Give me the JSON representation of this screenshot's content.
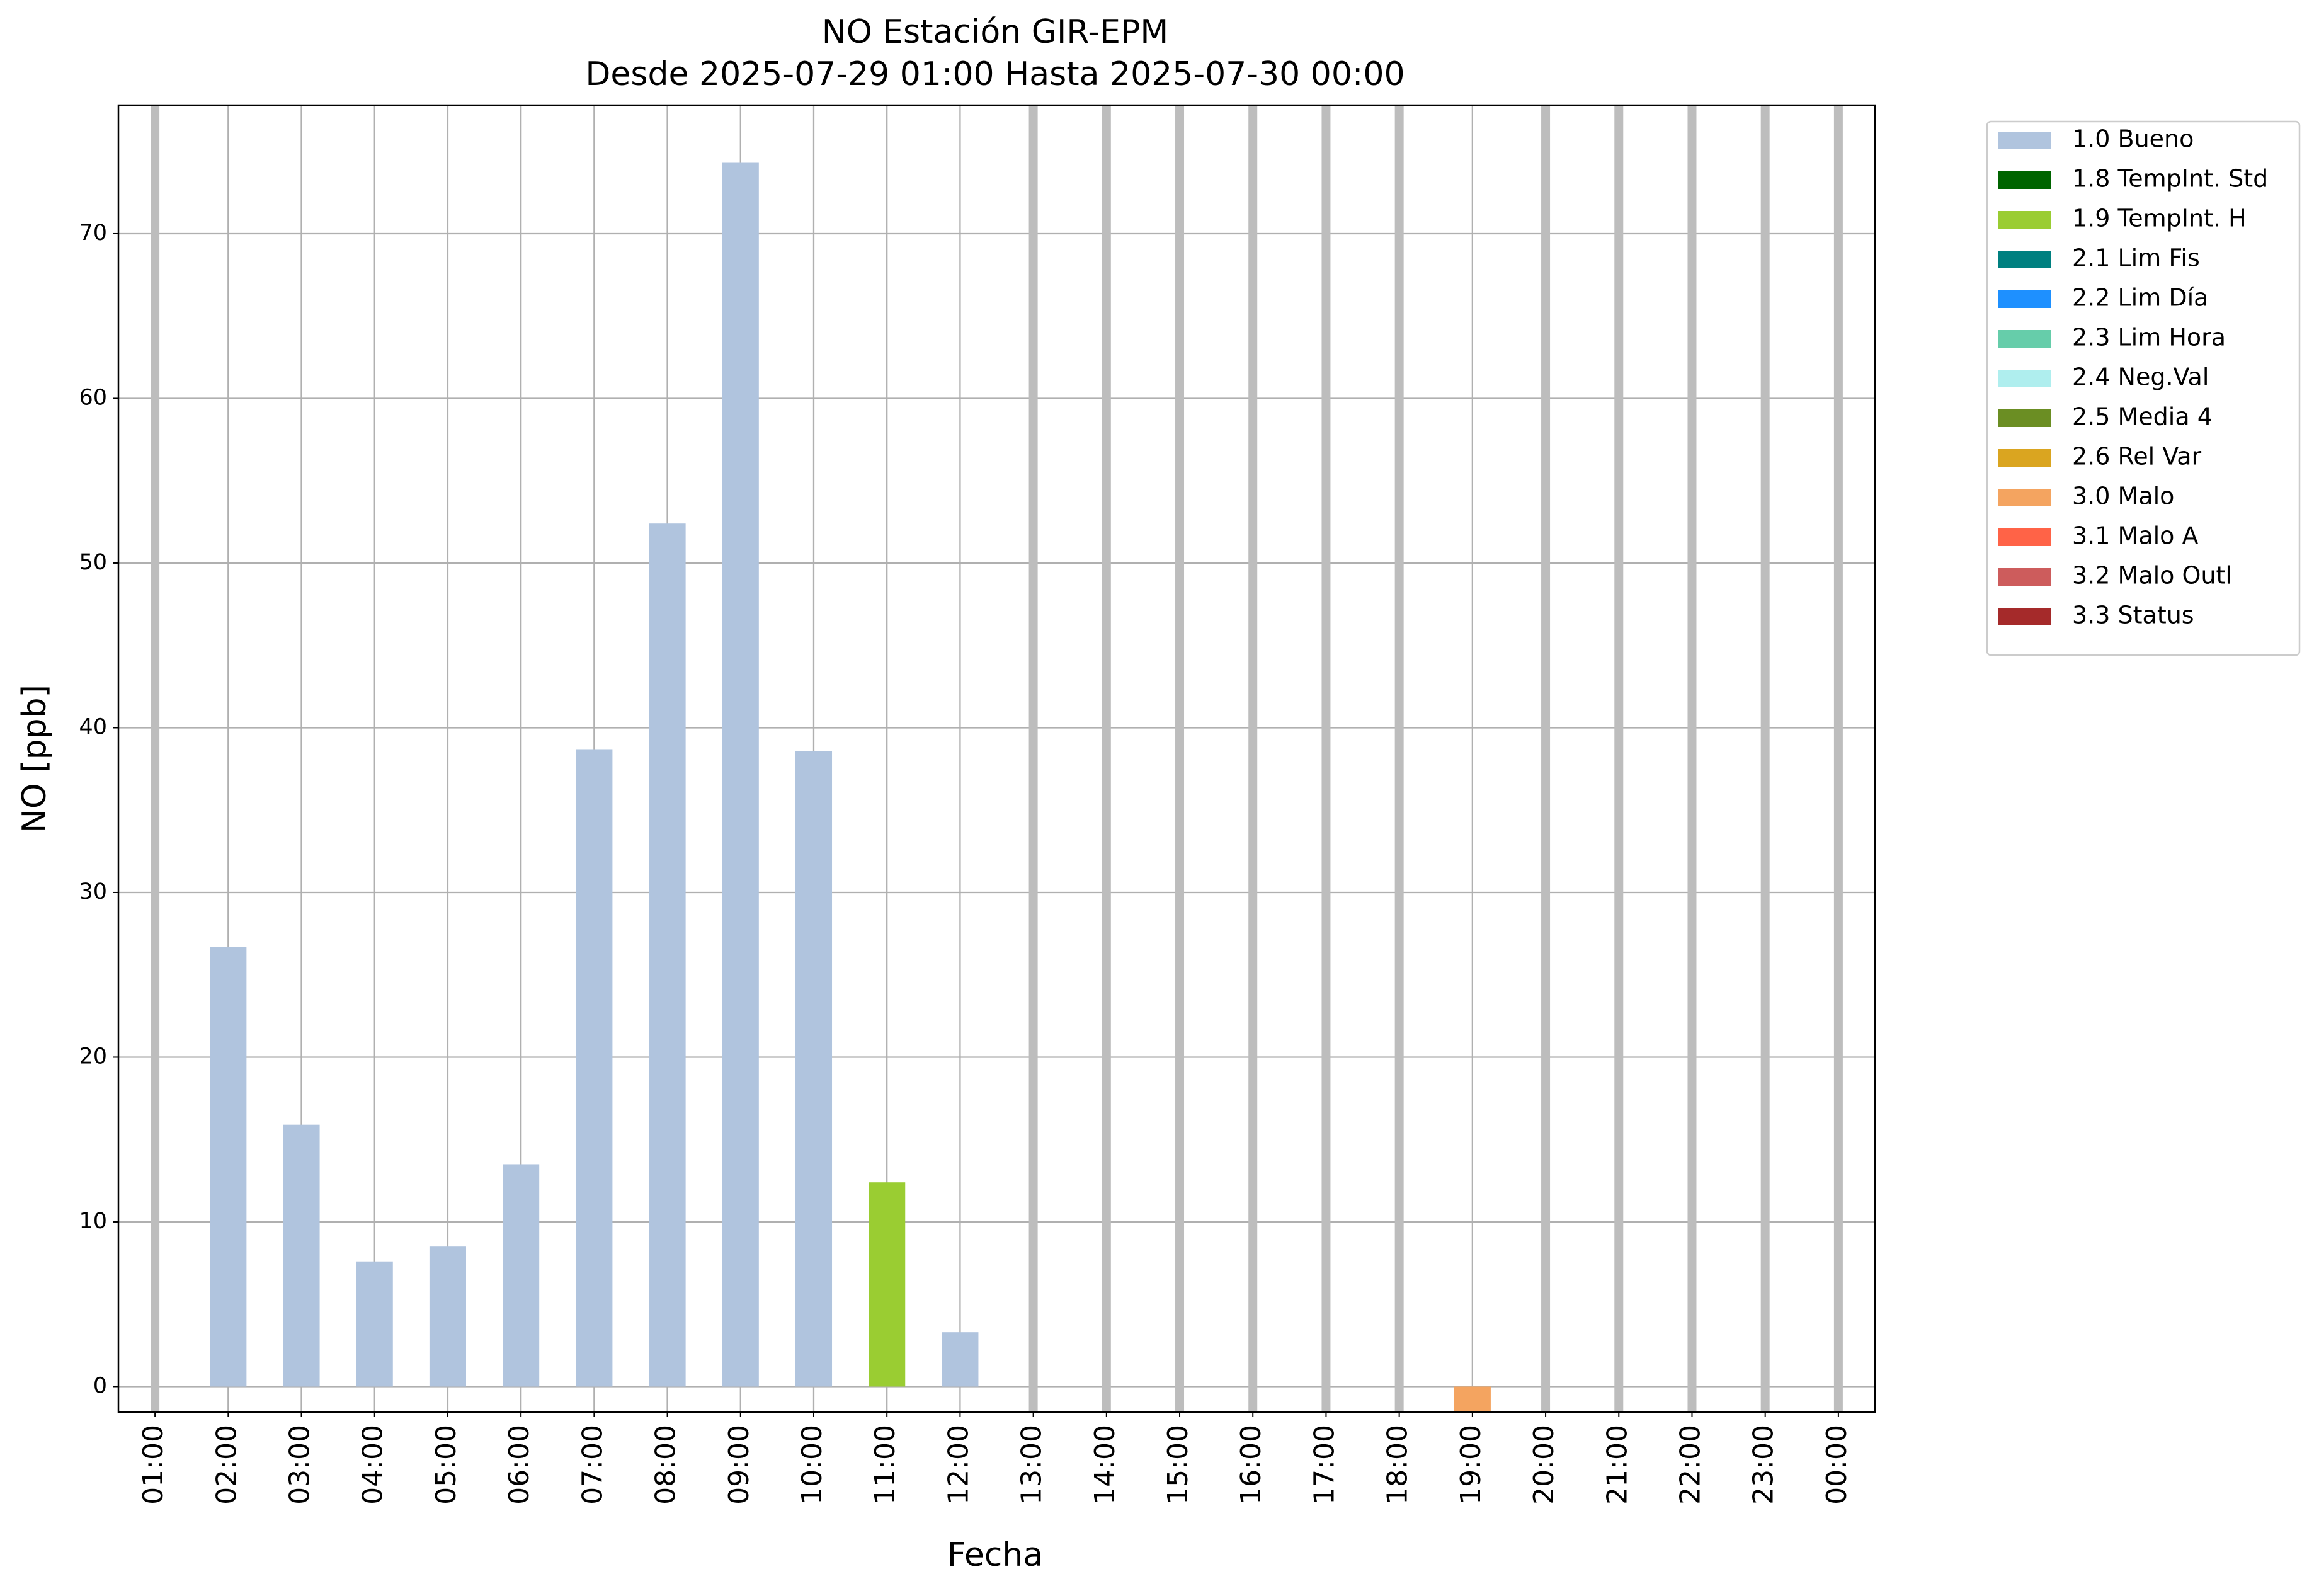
{
  "chart_data": {
    "type": "bar",
    "title": "NO Estación GIR-EPM",
    "subtitle": "Desde 2025-07-29 01:00 Hasta 2025-07-30 00:00",
    "x_label": "Fecha",
    "y_label": "NO [ppb]",
    "categories": [
      "01:00",
      "02:00",
      "03:00",
      "04:00",
      "05:00",
      "06:00",
      "07:00",
      "08:00",
      "09:00",
      "10:00",
      "11:00",
      "12:00",
      "13:00",
      "14:00",
      "15:00",
      "16:00",
      "17:00",
      "18:00",
      "19:00",
      "20:00",
      "21:00",
      "22:00",
      "23:00",
      "00:00"
    ],
    "ylim": [
      -1.55,
      77.8
    ],
    "yticks": [
      0,
      10,
      20,
      30,
      40,
      50,
      60,
      70
    ],
    "grid": true,
    "legend": "outside-right",
    "series": [
      {
        "name": "1.0 Bueno",
        "color": "#b0c4de",
        "values": [
          null,
          26.7,
          15.9,
          7.6,
          8.5,
          13.5,
          38.7,
          52.4,
          74.3,
          38.6,
          null,
          3.3,
          null,
          null,
          null,
          null,
          null,
          null,
          null,
          null,
          null,
          null,
          null,
          null
        ]
      },
      {
        "name": "1.8 TempInt. Std",
        "color": "#006400",
        "values": [
          null,
          null,
          null,
          null,
          null,
          null,
          null,
          null,
          null,
          null,
          null,
          null,
          null,
          null,
          null,
          null,
          null,
          null,
          null,
          null,
          null,
          null,
          null,
          null
        ]
      },
      {
        "name": "1.9 TempInt. H",
        "color": "#9acd32",
        "values": [
          null,
          null,
          null,
          null,
          null,
          null,
          null,
          null,
          null,
          null,
          12.4,
          null,
          null,
          null,
          null,
          null,
          null,
          null,
          null,
          null,
          null,
          null,
          null,
          null
        ]
      },
      {
        "name": "2.1 Lim Fis",
        "color": "#008080",
        "values": [
          null,
          null,
          null,
          null,
          null,
          null,
          null,
          null,
          null,
          null,
          null,
          null,
          null,
          null,
          null,
          null,
          null,
          null,
          null,
          null,
          null,
          null,
          null,
          null
        ]
      },
      {
        "name": "2.2 Lim Día",
        "color": "#1e90ff",
        "values": [
          null,
          null,
          null,
          null,
          null,
          null,
          null,
          null,
          null,
          null,
          null,
          null,
          null,
          null,
          null,
          null,
          null,
          null,
          null,
          null,
          null,
          null,
          null,
          null
        ]
      },
      {
        "name": "2.3 Lim Hora",
        "color": "#66cdaa",
        "values": [
          null,
          null,
          null,
          null,
          null,
          null,
          null,
          null,
          null,
          null,
          null,
          null,
          null,
          null,
          null,
          null,
          null,
          null,
          null,
          null,
          null,
          null,
          null,
          null
        ]
      },
      {
        "name": "2.4 Neg.Val",
        "color": "#afeeee",
        "values": [
          null,
          null,
          null,
          null,
          null,
          null,
          null,
          null,
          null,
          null,
          null,
          null,
          null,
          null,
          null,
          null,
          null,
          null,
          null,
          null,
          null,
          null,
          null,
          null
        ]
      },
      {
        "name": "2.5 Media 4",
        "color": "#6b8e23",
        "values": [
          null,
          null,
          null,
          null,
          null,
          null,
          null,
          null,
          null,
          null,
          null,
          null,
          null,
          null,
          null,
          null,
          null,
          null,
          null,
          null,
          null,
          null,
          null,
          null
        ]
      },
      {
        "name": "2.6 Rel Var",
        "color": "#daa520",
        "values": [
          null,
          null,
          null,
          null,
          null,
          null,
          null,
          null,
          null,
          null,
          null,
          null,
          null,
          null,
          null,
          null,
          null,
          null,
          null,
          null,
          null,
          null,
          null,
          null
        ]
      },
      {
        "name": "3.0 Malo",
        "color": "#f4a460",
        "values": [
          null,
          null,
          null,
          null,
          null,
          null,
          null,
          null,
          null,
          null,
          null,
          null,
          null,
          null,
          null,
          null,
          null,
          null,
          -1.5,
          null,
          null,
          null,
          null,
          null
        ]
      },
      {
        "name": "3.1 Malo A",
        "color": "#ff6347",
        "values": [
          null,
          null,
          null,
          null,
          null,
          null,
          null,
          null,
          null,
          null,
          null,
          null,
          null,
          null,
          null,
          null,
          null,
          null,
          null,
          null,
          null,
          null,
          null,
          null
        ]
      },
      {
        "name": "3.2 Malo Outl",
        "color": "#cd5c5c",
        "values": [
          null,
          null,
          null,
          null,
          null,
          null,
          null,
          null,
          null,
          null,
          null,
          null,
          null,
          null,
          null,
          null,
          null,
          null,
          null,
          null,
          null,
          null,
          null,
          null
        ]
      },
      {
        "name": "3.3 Status",
        "color": "#a52a2a",
        "values": [
          null,
          null,
          null,
          null,
          null,
          null,
          null,
          null,
          null,
          null,
          null,
          null,
          null,
          null,
          null,
          null,
          null,
          null,
          null,
          null,
          null,
          null,
          null,
          null
        ]
      }
    ]
  }
}
